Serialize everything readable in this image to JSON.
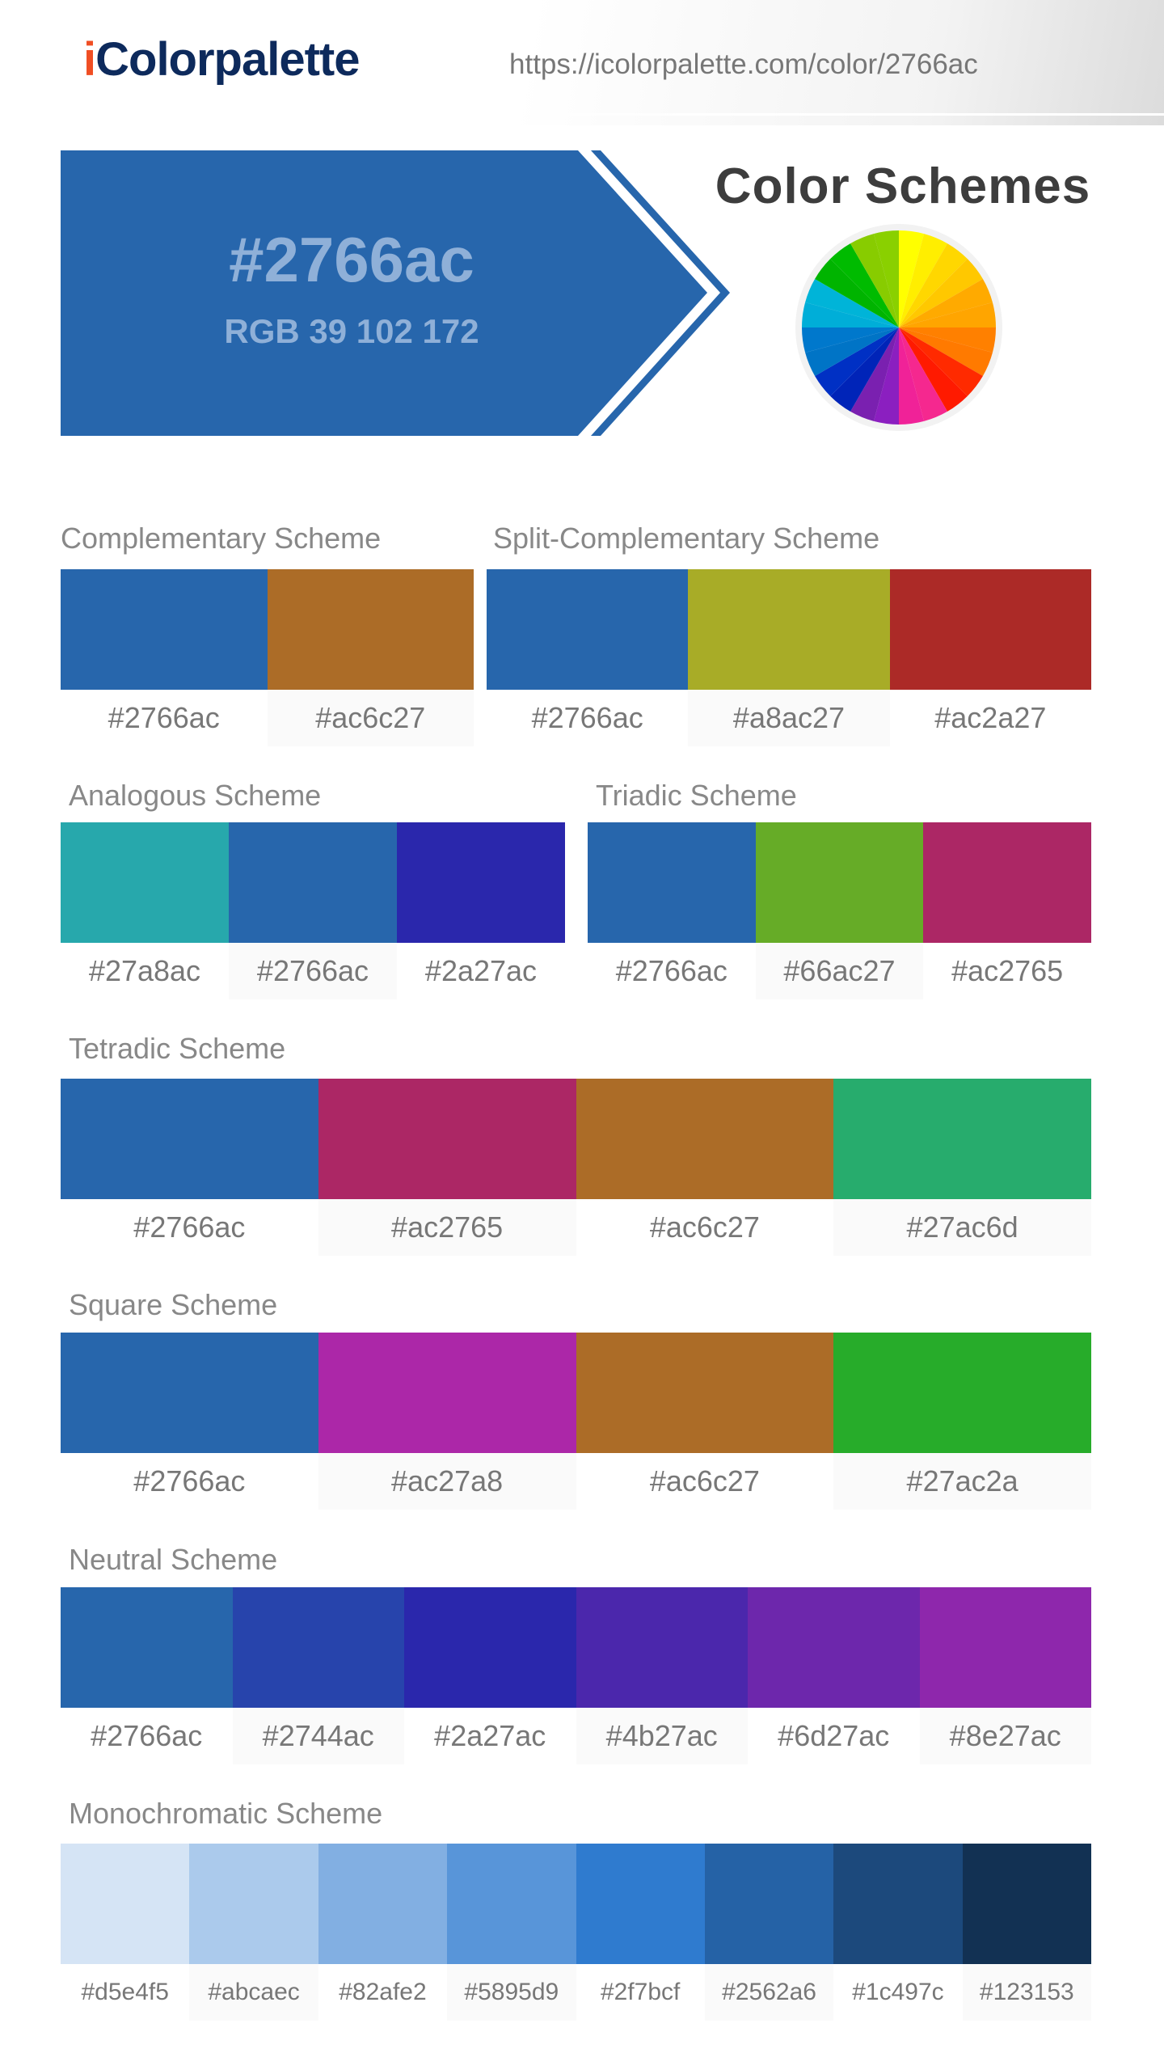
{
  "header": {
    "logo_i": "i",
    "logo_rest": "Colorpalette",
    "url": "https://icolorpalette.com/color/2766ac"
  },
  "hero": {
    "hex": "#2766ac",
    "rgb": "RGB 39 102 172",
    "color": "#2766ac",
    "title": "Color Schemes"
  },
  "wheel_colors": [
    "#ffff00",
    "#ffee00",
    "#ffd700",
    "#ffc800",
    "#ffaa00",
    "#ffa500",
    "#ff8000",
    "#ff7a00",
    "#ff2a00",
    "#ff1a00",
    "#f5288f",
    "#f02298",
    "#8b1fc0",
    "#7a20b0",
    "#0024b8",
    "#0030c4",
    "#0074c6",
    "#0078cc",
    "#00aed8",
    "#00b4d8",
    "#00b400",
    "#00bb00",
    "#88cc00",
    "#8ad000"
  ],
  "schemes": [
    {
      "title": "Complementary Scheme",
      "colors": [
        "#2766ac",
        "#ac6c27"
      ]
    },
    {
      "title": "Split-Complementary Scheme",
      "colors": [
        "#2766ac",
        "#a8ac27",
        "#ac2a27"
      ]
    },
    {
      "title": "Analogous Scheme",
      "colors": [
        "#27a8ac",
        "#2766ac",
        "#2a27ac"
      ]
    },
    {
      "title": "Triadic Scheme",
      "colors": [
        "#2766ac",
        "#66ac27",
        "#ac2765"
      ]
    },
    {
      "title": "Tetradic Scheme",
      "colors": [
        "#2766ac",
        "#ac2765",
        "#ac6c27",
        "#27ac6d"
      ]
    },
    {
      "title": "Square Scheme",
      "colors": [
        "#2766ac",
        "#ac27a8",
        "#ac6c27",
        "#27ac2a"
      ]
    },
    {
      "title": "Neutral Scheme",
      "colors": [
        "#2766ac",
        "#2744ac",
        "#2a27ac",
        "#4b27ac",
        "#6d27ac",
        "#8e27ac"
      ]
    },
    {
      "title": "Monochromatic Scheme",
      "colors": [
        "#d5e4f5",
        "#abcaec",
        "#82afe2",
        "#5895d9",
        "#2f7bcf",
        "#2562a6",
        "#1c497c",
        "#123153"
      ]
    }
  ]
}
